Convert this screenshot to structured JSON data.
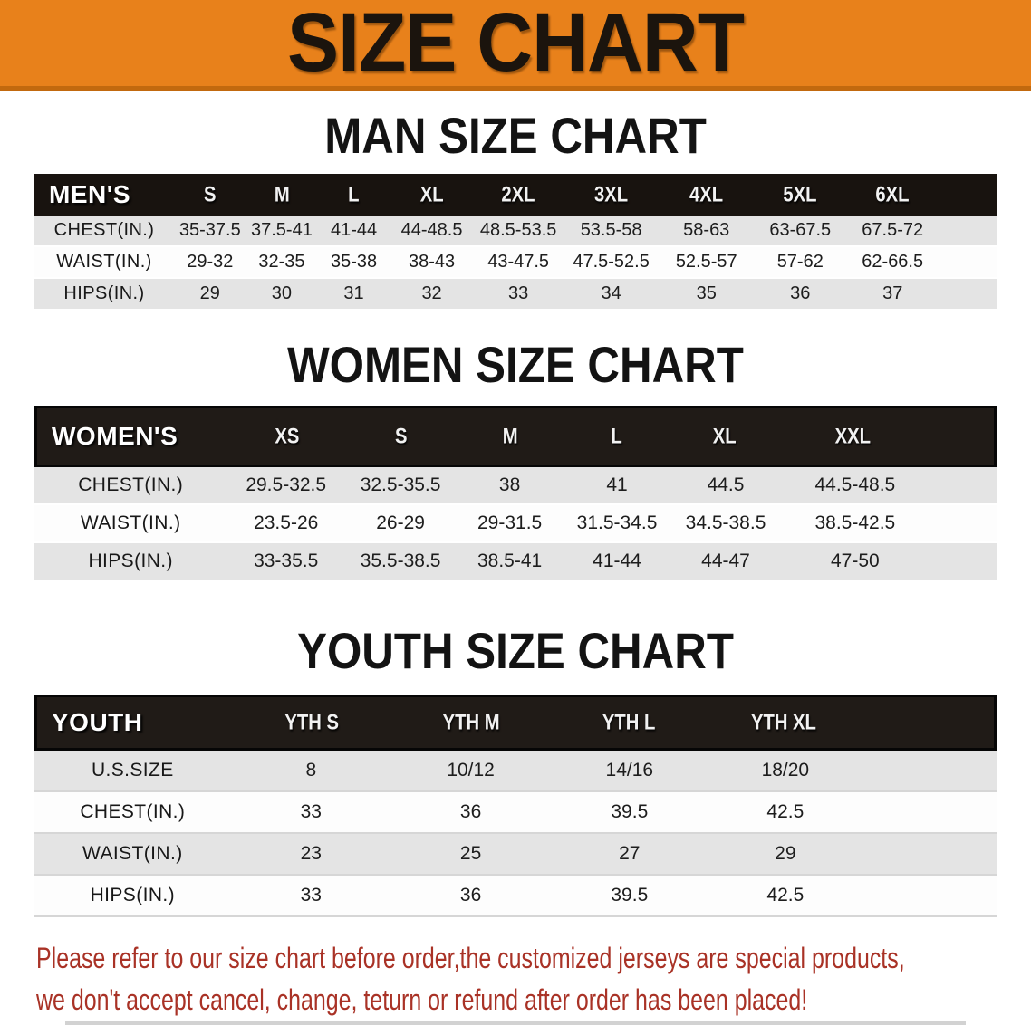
{
  "banner": {
    "title": "SIZE CHART",
    "bg": "#e8811b",
    "edge": "#c2690e",
    "text_color": "#1b140d"
  },
  "theme": {
    "header_bg": "#18130f",
    "row_gray": "#e4e4e4",
    "row_white": "#fdfdfd"
  },
  "sections": {
    "men": {
      "title": "MAN SIZE CHART",
      "header_label": "MEN'S",
      "columns": [
        "S",
        "M",
        "L",
        "XL",
        "2XL",
        "3XL",
        "4XL",
        "5XL",
        "6XL"
      ],
      "rows": [
        {
          "label": "CHEST(IN.)",
          "values": [
            "35-37.5",
            "37.5-41",
            "41-44",
            "44-48.5",
            "48.5-53.5",
            "53.5-58",
            "58-63",
            "63-67.5",
            "67.5-72"
          ]
        },
        {
          "label": "WAIST(IN.)",
          "values": [
            "29-32",
            "32-35",
            "35-38",
            "38-43",
            "43-47.5",
            "47.5-52.5",
            "52.5-57",
            "57-62",
            "62-66.5"
          ]
        },
        {
          "label": "HIPS(IN.)",
          "values": [
            "29",
            "30",
            "31",
            "32",
            "33",
            "34",
            "35",
            "36",
            "37"
          ]
        }
      ]
    },
    "women": {
      "title": "WOMEN SIZE CHART",
      "header_label": "WOMEN'S",
      "columns": [
        "XS",
        "S",
        "M",
        "L",
        "XL",
        "XXL"
      ],
      "rows": [
        {
          "label": "CHEST(IN.)",
          "values": [
            "29.5-32.5",
            "32.5-35.5",
            "38",
            "41",
            "44.5",
            "44.5-48.5"
          ]
        },
        {
          "label": "WAIST(IN.)",
          "values": [
            "23.5-26",
            "26-29",
            "29-31.5",
            "31.5-34.5",
            "34.5-38.5",
            "38.5-42.5"
          ]
        },
        {
          "label": "HIPS(IN.)",
          "values": [
            "33-35.5",
            "35.5-38.5",
            "38.5-41",
            "41-44",
            "44-47",
            "47-50"
          ]
        }
      ]
    },
    "youth": {
      "title": "YOUTH SIZE CHART",
      "header_label": "YOUTH",
      "columns": [
        "YTH S",
        "YTH M",
        "YTH L",
        "YTH XL"
      ],
      "rows": [
        {
          "label": "U.S.SIZE",
          "values": [
            "8",
            "10/12",
            "14/16",
            "18/20"
          ]
        },
        {
          "label": "CHEST(IN.)",
          "values": [
            "33",
            "36",
            "39.5",
            "42.5"
          ]
        },
        {
          "label": "WAIST(IN.)",
          "values": [
            "23",
            "25",
            "27",
            "29"
          ]
        },
        {
          "label": "HIPS(IN.)",
          "values": [
            "33",
            "36",
            "39.5",
            "42.5"
          ]
        }
      ]
    }
  },
  "footer": {
    "line1": "Please refer to our size chart before order,the customized jerseys are special products,",
    "line2": "we don't accept cancel, change, teturn or refund after order has been placed!",
    "text_color": "#a93226"
  }
}
